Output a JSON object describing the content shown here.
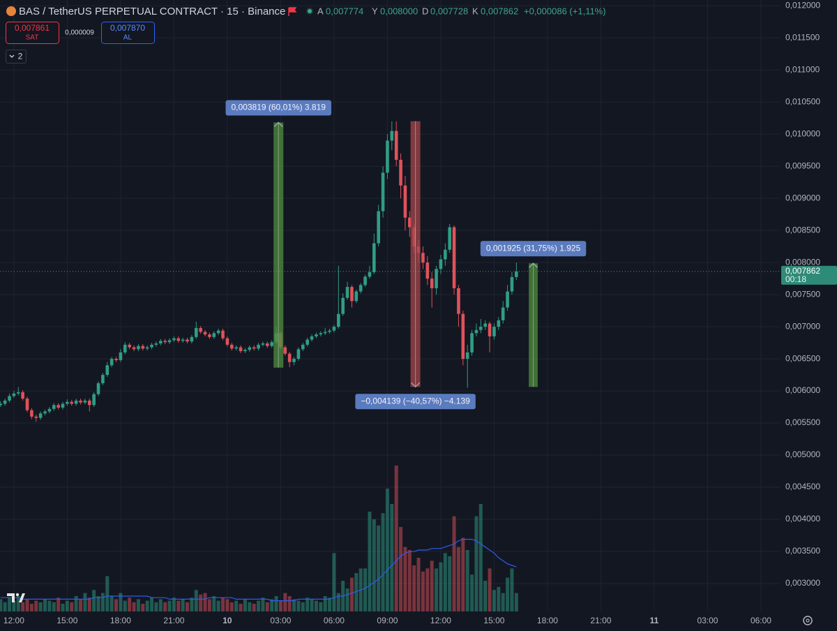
{
  "header": {
    "symbol": "BAS / TetherUS PERPETUAL CONTRACT · 15 · Binance",
    "ohlc": [
      {
        "key": "A",
        "value": "0,007774"
      },
      {
        "key": "Y",
        "value": "0,008000"
      },
      {
        "key": "D",
        "value": "0,007728"
      },
      {
        "key": "K",
        "value": "0,007862"
      }
    ],
    "change": "+0,000086 (+1,11%)"
  },
  "trade": {
    "sell_price": "0,007861",
    "sell_label": "SAT",
    "spread": "0,000009",
    "buy_price": "0,007870",
    "buy_label": "AL"
  },
  "indicators_count": 2,
  "chart_data": {
    "type": "candlestick",
    "grid": true,
    "up_color": "#2f9e84",
    "down_color": "#e0525a",
    "ma_color": "#2f5cf0",
    "x": [
      -0.75,
      -0.5,
      -0.25,
      0,
      0.25,
      0.5,
      0.75,
      1,
      1.25,
      1.5,
      1.75,
      2,
      2.25,
      2.5,
      2.75,
      3,
      3.25,
      3.5,
      3.75,
      4,
      4.25,
      4.5,
      4.75,
      5,
      5.25,
      5.5,
      5.75,
      6,
      6.25,
      6.5,
      6.75,
      7,
      7.25,
      7.5,
      7.75,
      8,
      8.25,
      8.5,
      8.75,
      9,
      9.25,
      9.5,
      9.75,
      10,
      10.25,
      10.5,
      10.75,
      11,
      11.25,
      11.5,
      11.75,
      12,
      12.25,
      12.5,
      12.75,
      13,
      13.25,
      13.5,
      13.75,
      14,
      14.25,
      14.5,
      14.75,
      15,
      15.25,
      15.5,
      15.75,
      16,
      16.25,
      16.5,
      16.75,
      17,
      17.25,
      17.5,
      17.75,
      18,
      18.25,
      18.5,
      18.75,
      19,
      19.25,
      19.5,
      19.75,
      20,
      20.25,
      20.5,
      20.75,
      21,
      21.25,
      21.5,
      21.75,
      22,
      22.25,
      22.5,
      22.75,
      23,
      23.25,
      23.5,
      23.75,
      24,
      24.25,
      24.5,
      24.75,
      25,
      25.25,
      25.5,
      25.75,
      26,
      26.25,
      26.5,
      26.75,
      27,
      27.25,
      27.5,
      27.75,
      28,
      28.25
    ],
    "open": [
      0.00578,
      0.0058,
      0.00585,
      0.00592,
      0.00596,
      0.00598,
      0.00588,
      0.0057,
      0.0056,
      0.00558,
      0.00565,
      0.00568,
      0.00572,
      0.00578,
      0.00574,
      0.0058,
      0.00583,
      0.0058,
      0.00585,
      0.00582,
      0.00585,
      0.00578,
      0.00595,
      0.00612,
      0.00625,
      0.0064,
      0.0065,
      0.00648,
      0.0066,
      0.00672,
      0.00668,
      0.00665,
      0.0067,
      0.00666,
      0.00668,
      0.00672,
      0.00674,
      0.00678,
      0.00676,
      0.00679,
      0.00682,
      0.00678,
      0.0068,
      0.00677,
      0.00684,
      0.00698,
      0.00692,
      0.00688,
      0.00684,
      0.0069,
      0.00694,
      0.00682,
      0.00672,
      0.00666,
      0.00668,
      0.00662,
      0.00664,
      0.00668,
      0.00666,
      0.00672,
      0.00674,
      0.0067,
      0.00676,
      0.0069,
      0.00668,
      0.00658,
      0.00645,
      0.0065,
      0.00665,
      0.00672,
      0.0068,
      0.00685,
      0.00688,
      0.0069,
      0.00692,
      0.00694,
      0.007,
      0.0072,
      0.00745,
      0.00762,
      0.0074,
      0.00755,
      0.00765,
      0.00778,
      0.00785,
      0.0083,
      0.0088,
      0.0094,
      0.0099,
      0.01005,
      0.0096,
      0.0092,
      0.0087,
      0.00855,
      0.00825,
      0.00815,
      0.008,
      0.00775,
      0.0076,
      0.0079,
      0.00805,
      0.0082,
      0.00855,
      0.0076,
      0.0072,
      0.0065,
      0.0066,
      0.0069,
      0.00695,
      0.007,
      0.00705,
      0.00685,
      0.007,
      0.0071,
      0.0073,
      0.00755,
      0.007774
    ],
    "high": [
      0.00584,
      0.00588,
      0.00596,
      0.006,
      0.00606,
      0.00601,
      0.00591,
      0.00573,
      0.00563,
      0.00568,
      0.00571,
      0.00575,
      0.00581,
      0.00581,
      0.00583,
      0.00587,
      0.00586,
      0.00588,
      0.00588,
      0.00588,
      0.00588,
      0.00598,
      0.00615,
      0.00628,
      0.00645,
      0.00653,
      0.00653,
      0.00665,
      0.00676,
      0.00675,
      0.00671,
      0.00673,
      0.00673,
      0.00671,
      0.00675,
      0.00677,
      0.00681,
      0.00681,
      0.00682,
      0.00685,
      0.00685,
      0.00683,
      0.00683,
      0.00687,
      0.00708,
      0.00701,
      0.00695,
      0.00691,
      0.00693,
      0.00697,
      0.00697,
      0.00685,
      0.00675,
      0.00671,
      0.00671,
      0.00667,
      0.00671,
      0.00671,
      0.00675,
      0.00677,
      0.00677,
      0.00679,
      0.007,
      0.00693,
      0.00671,
      0.00661,
      0.00653,
      0.00668,
      0.00675,
      0.00683,
      0.00688,
      0.00691,
      0.00693,
      0.00698,
      0.00697,
      0.00703,
      0.00795,
      0.00752,
      0.0077,
      0.00765,
      0.00758,
      0.00768,
      0.00781,
      0.00795,
      0.00845,
      0.0089,
      0.0095,
      0.01,
      0.0102,
      0.0102,
      0.0097,
      0.00935,
      0.0088,
      0.0086,
      0.00835,
      0.00825,
      0.0081,
      0.00785,
      0.00795,
      0.00812,
      0.0083,
      0.0086,
      0.00858,
      0.00765,
      0.00725,
      0.00672,
      0.00695,
      0.00705,
      0.00712,
      0.0071,
      0.00708,
      0.00705,
      0.00715,
      0.0074,
      0.00765,
      0.00785,
      0.008
    ],
    "low": [
      0.00575,
      0.00577,
      0.00582,
      0.00589,
      0.00593,
      0.00585,
      0.00567,
      0.00556,
      0.00552,
      0.00555,
      0.00562,
      0.00565,
      0.00569,
      0.00571,
      0.00571,
      0.00577,
      0.00577,
      0.00577,
      0.00579,
      0.00579,
      0.00568,
      0.00575,
      0.00592,
      0.00609,
      0.00622,
      0.00637,
      0.00645,
      0.00645,
      0.00657,
      0.00665,
      0.00662,
      0.00662,
      0.00663,
      0.00663,
      0.00665,
      0.00669,
      0.00671,
      0.00673,
      0.00673,
      0.00676,
      0.00675,
      0.00675,
      0.00674,
      0.00674,
      0.00681,
      0.00689,
      0.00685,
      0.00681,
      0.00681,
      0.00687,
      0.00679,
      0.00669,
      0.00663,
      0.00663,
      0.00659,
      0.00659,
      0.00661,
      0.00663,
      0.00663,
      0.00669,
      0.00667,
      0.00667,
      0.00673,
      0.00665,
      0.00655,
      0.00637,
      0.0064,
      0.00647,
      0.00662,
      0.00669,
      0.00677,
      0.00682,
      0.00685,
      0.00687,
      0.00689,
      0.00691,
      0.00697,
      0.00717,
      0.00742,
      0.0073,
      0.00737,
      0.00752,
      0.00762,
      0.00775,
      0.00782,
      0.00825,
      0.0087,
      0.0093,
      0.00975,
      0.0095,
      0.009,
      0.0085,
      0.0084,
      0.00815,
      0.008,
      0.0079,
      0.00765,
      0.0073,
      0.0075,
      0.00782,
      0.00795,
      0.00815,
      0.0075,
      0.007,
      0.0064,
      0.00605,
      0.00655,
      0.00685,
      0.0069,
      0.00695,
      0.0066,
      0.0068,
      0.00695,
      0.00705,
      0.00725,
      0.0075,
      0.007728
    ],
    "close": [
      0.0058,
      0.00585,
      0.00592,
      0.00596,
      0.00598,
      0.00588,
      0.0057,
      0.0056,
      0.00558,
      0.00565,
      0.00568,
      0.00572,
      0.00578,
      0.00574,
      0.0058,
      0.00583,
      0.0058,
      0.00585,
      0.00582,
      0.00585,
      0.00578,
      0.00595,
      0.00612,
      0.00625,
      0.0064,
      0.0065,
      0.00648,
      0.0066,
      0.00672,
      0.00668,
      0.00665,
      0.0067,
      0.00666,
      0.00668,
      0.00672,
      0.00674,
      0.00678,
      0.00676,
      0.00679,
      0.00682,
      0.00678,
      0.0068,
      0.00677,
      0.00684,
      0.00698,
      0.00692,
      0.00688,
      0.00684,
      0.0069,
      0.00694,
      0.00682,
      0.00672,
      0.00666,
      0.00668,
      0.00662,
      0.00664,
      0.00668,
      0.00666,
      0.00672,
      0.00674,
      0.0067,
      0.00676,
      0.0069,
      0.00668,
      0.00658,
      0.00645,
      0.0065,
      0.00665,
      0.00672,
      0.0068,
      0.00685,
      0.00688,
      0.0069,
      0.00692,
      0.00694,
      0.007,
      0.0072,
      0.00745,
      0.00762,
      0.0074,
      0.00755,
      0.00765,
      0.00778,
      0.00785,
      0.0083,
      0.0088,
      0.0094,
      0.0099,
      0.01005,
      0.0096,
      0.0092,
      0.0087,
      0.00855,
      0.00825,
      0.00815,
      0.008,
      0.00775,
      0.0076,
      0.0079,
      0.00805,
      0.0082,
      0.00855,
      0.0076,
      0.0072,
      0.0065,
      0.0066,
      0.0069,
      0.00695,
      0.007,
      0.00705,
      0.00685,
      0.007,
      0.0071,
      0.0073,
      0.00755,
      0.007774,
      0.007862
    ],
    "volume": [
      8,
      6,
      9,
      7,
      10,
      6,
      8,
      5,
      7,
      6,
      8,
      7,
      6,
      9,
      5,
      7,
      6,
      10,
      8,
      12,
      9,
      14,
      10,
      12,
      23,
      10,
      8,
      12,
      7,
      9,
      6,
      8,
      5,
      7,
      9,
      6,
      8,
      6,
      7,
      9,
      7,
      8,
      6,
      9,
      14,
      11,
      12,
      8,
      10,
      7,
      9,
      8,
      6,
      7,
      5,
      8,
      6,
      5,
      7,
      9,
      6,
      8,
      10,
      7,
      12,
      10,
      8,
      7,
      6,
      9,
      8,
      7,
      6,
      10,
      9,
      38,
      12,
      20,
      15,
      22,
      25,
      28,
      28,
      65,
      60,
      56,
      64,
      80,
      70,
      95,
      55,
      42,
      40,
      30,
      35,
      26,
      28,
      33,
      28,
      32,
      38,
      36,
      62,
      42,
      48,
      40,
      24,
      62,
      70,
      20,
      28,
      14,
      16,
      12,
      22,
      28,
      12
    ],
    "volume_ma": [
      9,
      9,
      9,
      9,
      9,
      8,
      8,
      8,
      8,
      8,
      8,
      8,
      8,
      8,
      8,
      8,
      8,
      8,
      8,
      8,
      8,
      9,
      9,
      9,
      10,
      10,
      10,
      10,
      10,
      10,
      10,
      10,
      10,
      10,
      9,
      9,
      9,
      9,
      8,
      8,
      8,
      8,
      8,
      8,
      8,
      8,
      8,
      9,
      9,
      9,
      9,
      9,
      9,
      8,
      8,
      8,
      8,
      8,
      8,
      8,
      8,
      7,
      7,
      7,
      7,
      7,
      7,
      8,
      8,
      8,
      8,
      8,
      8,
      8,
      8,
      9,
      10,
      10,
      11,
      12,
      13,
      14,
      15,
      17,
      19,
      21,
      24,
      27,
      30,
      33,
      36,
      38,
      39,
      39,
      40,
      40,
      40,
      41,
      41,
      41,
      42,
      43,
      44,
      46,
      47,
      47,
      47,
      46,
      44,
      42,
      40,
      38,
      35,
      33,
      31,
      30,
      29
    ],
    "volume_lim": [
      0,
      100
    ],
    "xlim": [
      -0.78,
      43.06
    ],
    "xticks": [
      {
        "value": 0,
        "label": "12:00"
      },
      {
        "value": 3,
        "label": "15:00"
      },
      {
        "value": 6,
        "label": "18:00"
      },
      {
        "value": 9,
        "label": "21:00"
      },
      {
        "value": 12,
        "label": "10"
      },
      {
        "value": 15,
        "label": "03:00"
      },
      {
        "value": 18,
        "label": "06:00"
      },
      {
        "value": 21,
        "label": "09:00"
      },
      {
        "value": 24,
        "label": "12:00"
      },
      {
        "value": 27,
        "label": "15:00"
      },
      {
        "value": 30,
        "label": "18:00"
      },
      {
        "value": 33,
        "label": "21:00"
      },
      {
        "value": 36,
        "label": "11"
      },
      {
        "value": 39,
        "label": "03:00"
      },
      {
        "value": 42,
        "label": "06:00"
      }
    ],
    "ylim": [
      0.00263,
      0.01209
    ],
    "yticks": [
      {
        "value": 0.012,
        "label": "0,012000"
      },
      {
        "value": 0.0115,
        "label": "0,011500"
      },
      {
        "value": 0.011,
        "label": "0,011000"
      },
      {
        "value": 0.0105,
        "label": "0,010500"
      },
      {
        "value": 0.01,
        "label": "0,010000"
      },
      {
        "value": 0.0095,
        "label": "0,009500"
      },
      {
        "value": 0.009,
        "label": "0,009000"
      },
      {
        "value": 0.0085,
        "label": "0,008500"
      },
      {
        "value": 0.008,
        "label": "0,008000"
      },
      {
        "value": 0.0075,
        "label": "0,007500"
      },
      {
        "value": 0.007,
        "label": "0,007000"
      },
      {
        "value": 0.0065,
        "label": "0,006500"
      },
      {
        "value": 0.006,
        "label": "0,006000"
      },
      {
        "value": 0.0055,
        "label": "0,005500"
      },
      {
        "value": 0.005,
        "label": "0,005000"
      },
      {
        "value": 0.0045,
        "label": "0,004500"
      },
      {
        "value": 0.004,
        "label": "0,004000"
      },
      {
        "value": 0.0035,
        "label": "0,003500"
      },
      {
        "value": 0.003,
        "label": "0,003000"
      }
    ],
    "last_price": {
      "value": 0.007862,
      "label": "0,007862"
    },
    "countdown": "00:18",
    "measures": [
      {
        "label": "0,003819 (60,01%) 3.819",
        "from": 0.006363,
        "to": 0.010182,
        "start": 14.6,
        "end": 15.15,
        "color": "#4f8f3c"
      },
      {
        "label": "−0,004139 (−40,57%) −4.139",
        "from": 0.010202,
        "to": 0.006063,
        "start": 22.3,
        "end": 22.85,
        "color": "#a5474b"
      },
      {
        "label": "0,001925 (31,75%) 1.925",
        "from": 0.006063,
        "to": 0.007988,
        "start": 28.95,
        "end": 29.45,
        "color": "#4f8f3c"
      }
    ]
  }
}
